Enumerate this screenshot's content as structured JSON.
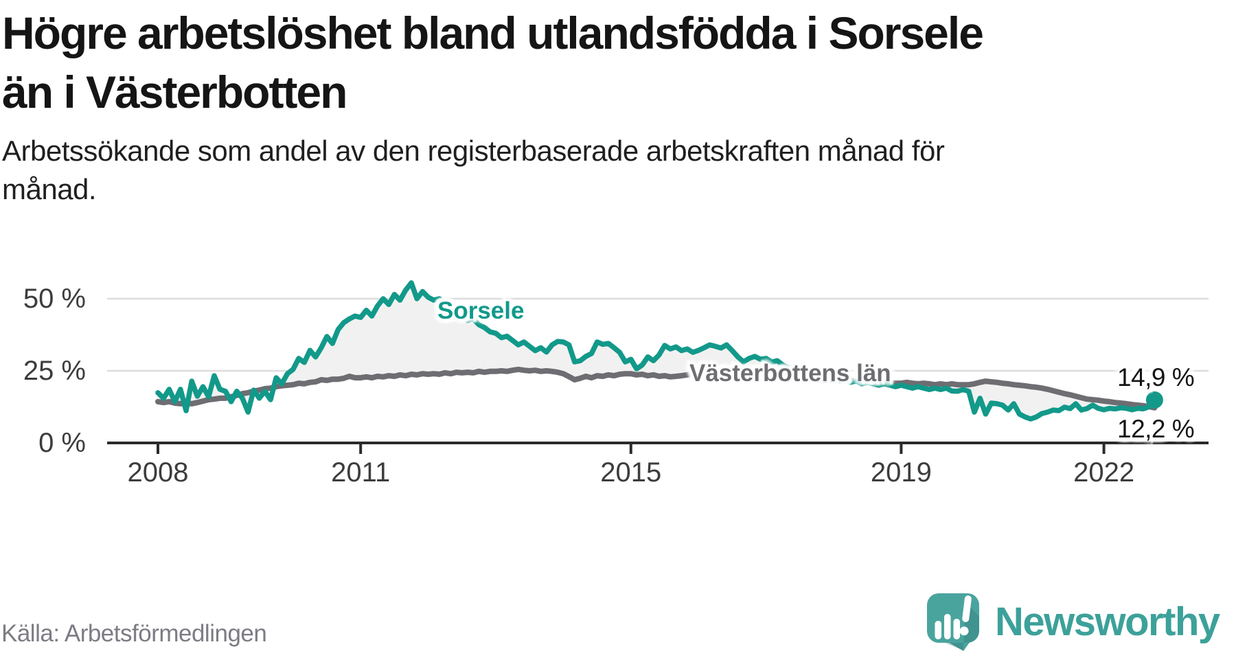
{
  "header": {
    "title": "Högre arbetslöshet bland utlandsfödda i Sorsele än i Västerbotten",
    "subtitle": "Arbetssökande som andel av den registerbaserade arbetskraften månad för månad."
  },
  "footer": {
    "source": "Källa: Arbetsförmedlingen",
    "brand": "Newsworthy"
  },
  "colors": {
    "sorsele_line": "#12998a",
    "vasterbotten_line": "#6d6d72",
    "fill_between": "#f1f1f1",
    "gridline": "#dcdcdc",
    "axis": "#2b2b2b",
    "logo_teal": "#4aa49e",
    "logo_shadow": "#2e7572",
    "brand_text_teal": "#3ca19a"
  },
  "chart_data": {
    "type": "line",
    "unit": "%",
    "x_start": {
      "year": 2008,
      "month": 1
    },
    "x_end": {
      "year": 2022,
      "month": 10
    },
    "ylim": [
      0,
      60
    ],
    "grid": "horizontal",
    "legend_position": "inline-labels",
    "y_ticks": [
      {
        "value": 0,
        "label": "0 %"
      },
      {
        "value": 25,
        "label": "25 %"
      },
      {
        "value": 50,
        "label": "50 %"
      }
    ],
    "x_ticks": [
      {
        "year": 2008,
        "label": "2008"
      },
      {
        "year": 2011,
        "label": "2011"
      },
      {
        "year": 2015,
        "label": "2015"
      },
      {
        "year": 2019,
        "label": "2019"
      },
      {
        "year": 2022,
        "label": "2022"
      }
    ],
    "annotations": {
      "sorsele_label": "Sorsele",
      "vasterbotten_label": "Västerbottens län",
      "sorsele_end_value": "14,9 %",
      "vasterbotten_end_value": "12,2 %"
    },
    "series": [
      {
        "name": "Sorsele",
        "color": "#12998a",
        "end_marker": true,
        "values": [
          17.4,
          15.5,
          18.6,
          14.3,
          18.6,
          11.2,
          21.4,
          16.2,
          19.5,
          16.0,
          23.3,
          18.6,
          17.9,
          14.3,
          17.9,
          15.5,
          10.7,
          18.3,
          15.5,
          17.9,
          15.0,
          22.6,
          20.5,
          24.0,
          25.5,
          29.3,
          27.9,
          32.1,
          29.8,
          33.0,
          36.9,
          34.5,
          39.3,
          41.7,
          43.0,
          44.0,
          43.5,
          46.0,
          44.0,
          47.5,
          50.0,
          48.0,
          51.5,
          49.5,
          53.0,
          55.5,
          50.0,
          52.5,
          50.5,
          49.5,
          50.0,
          48.0,
          47.0,
          45.5,
          44.0,
          42.5,
          43.0,
          41.0,
          40.0,
          38.5,
          38.0,
          36.5,
          37.0,
          35.5,
          34.0,
          35.0,
          33.5,
          32.0,
          33.0,
          31.5,
          34.0,
          35.2,
          35.0,
          34.0,
          28.1,
          28.5,
          30.0,
          31.0,
          35.0,
          34.2,
          34.5,
          33.0,
          31.4,
          28.1,
          29.0,
          25.7,
          27.0,
          29.8,
          28.5,
          30.5,
          33.8,
          32.6,
          33.3,
          32.0,
          32.6,
          31.4,
          32.1,
          33.0,
          34.0,
          33.5,
          32.9,
          34.0,
          32.0,
          29.8,
          28.1,
          29.3,
          30.0,
          29.0,
          29.3,
          28.0,
          28.5,
          27.0,
          26.0,
          26.5,
          25.0,
          24.0,
          23.5,
          23.0,
          22.5,
          22.0,
          22.5,
          21.5,
          22.0,
          21.0,
          21.5,
          20.5,
          21.0,
          20.5,
          20.0,
          20.5,
          20.0,
          19.5,
          20.0,
          19.5,
          19.0,
          19.5,
          19.0,
          18.5,
          19.0,
          18.5,
          19.0,
          18.0,
          17.9,
          18.5,
          17.9,
          10.7,
          15.5,
          10.0,
          13.8,
          13.6,
          13.1,
          11.4,
          13.6,
          10.0,
          9.0,
          8.3,
          9.0,
          10.2,
          10.7,
          11.4,
          11.2,
          12.4,
          11.9,
          13.6,
          11.4,
          11.9,
          13.1,
          12.0,
          11.5,
          12.0,
          11.8,
          12.2,
          12.0,
          11.5,
          12.0,
          11.8,
          12.5,
          14.9
        ]
      },
      {
        "name": "Västerbottens län",
        "color": "#6d6d72",
        "end_marker": false,
        "values": [
          14.3,
          14.0,
          14.3,
          13.8,
          13.6,
          13.8,
          13.6,
          14.0,
          14.5,
          15.0,
          15.2,
          15.5,
          15.5,
          16.0,
          16.5,
          17.1,
          17.4,
          17.9,
          18.3,
          18.8,
          19.0,
          19.5,
          19.8,
          20.0,
          20.2,
          20.7,
          20.5,
          21.0,
          21.2,
          21.9,
          21.7,
          22.1,
          22.1,
          22.4,
          23.1,
          22.6,
          22.6,
          22.9,
          22.6,
          23.1,
          22.9,
          23.3,
          23.1,
          23.6,
          23.3,
          23.8,
          23.6,
          24.0,
          23.8,
          24.0,
          23.8,
          24.3,
          24.0,
          24.5,
          24.3,
          24.5,
          24.3,
          24.8,
          24.5,
          24.8,
          24.8,
          25.0,
          24.8,
          25.2,
          25.5,
          25.2,
          25.0,
          25.2,
          24.8,
          25.0,
          24.8,
          24.5,
          24.0,
          23.0,
          21.9,
          22.4,
          23.1,
          22.6,
          23.3,
          23.1,
          23.6,
          23.3,
          23.8,
          24.0,
          24.0,
          23.6,
          23.8,
          23.3,
          23.6,
          23.1,
          23.3,
          22.9,
          23.1,
          23.3,
          23.6,
          23.8,
          23.8,
          24.0,
          23.8,
          23.6,
          23.3,
          23.1,
          22.9,
          23.1,
          23.3,
          23.1,
          22.9,
          23.1,
          23.1,
          22.9,
          22.6,
          22.4,
          22.1,
          22.4,
          22.1,
          21.9,
          22.1,
          21.9,
          21.7,
          21.9,
          21.9,
          21.7,
          21.4,
          21.7,
          21.4,
          21.2,
          21.4,
          21.2,
          21.0,
          21.2,
          21.0,
          20.7,
          20.7,
          21.0,
          20.7,
          20.5,
          20.7,
          20.5,
          20.2,
          20.5,
          20.2,
          20.5,
          20.2,
          20.2,
          20.2,
          20.5,
          21.0,
          21.4,
          21.2,
          21.0,
          20.7,
          20.5,
          20.2,
          20.0,
          19.8,
          19.5,
          19.3,
          19.0,
          18.6,
          18.1,
          17.6,
          17.1,
          16.7,
          16.2,
          15.7,
          15.2,
          15.0,
          14.8,
          14.5,
          14.3,
          14.0,
          13.8,
          13.6,
          13.3,
          13.1,
          12.9,
          12.6,
          12.2
        ]
      }
    ]
  }
}
